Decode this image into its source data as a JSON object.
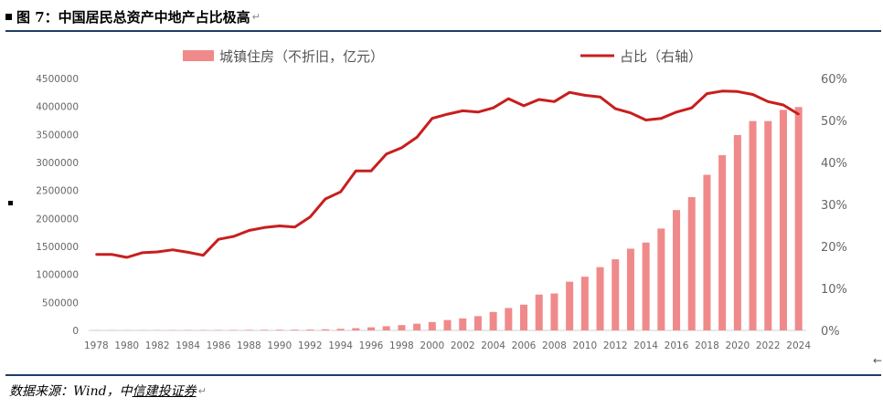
{
  "header": {
    "title": "图 7：中国居民总资产中地产占比极高",
    "return_mark": "↵"
  },
  "footer": {
    "source_prefix": "数据来源：Wind，中",
    "source_link": "信建投证券",
    "return_mark": "↵"
  },
  "side_arrow": "←",
  "colors": {
    "bar": "#f08a8a",
    "line": "#c81e1e",
    "rule": "#1f3f66"
  },
  "chart_data": {
    "type": "bar",
    "title": "",
    "xlabel": "",
    "ylabel": "",
    "categories": [
      1978,
      1979,
      1980,
      1981,
      1982,
      1983,
      1984,
      1985,
      1986,
      1987,
      1988,
      1989,
      1990,
      1991,
      1992,
      1993,
      1994,
      1995,
      1996,
      1997,
      1998,
      1999,
      2000,
      2001,
      2002,
      2003,
      2004,
      2005,
      2006,
      2007,
      2008,
      2009,
      2010,
      2011,
      2012,
      2013,
      2014,
      2015,
      2016,
      2017,
      2018,
      2019,
      2020,
      2021,
      2022,
      2023,
      2024
    ],
    "x_tick_labels": [
      "1978",
      "1980",
      "1982",
      "1984",
      "1986",
      "1988",
      "1990",
      "1992",
      "1994",
      "1996",
      "1998",
      "2000",
      "2002",
      "2004",
      "2006",
      "2008",
      "2010",
      "2012",
      "2014",
      "2016",
      "2018",
      "2020",
      "2022",
      "2024"
    ],
    "y_left": {
      "min": 0,
      "max": 4500000,
      "ticks": [
        "0",
        "500000",
        "1000000",
        "1500000",
        "2000000",
        "2500000",
        "3000000",
        "3500000",
        "4000000",
        "4500000"
      ]
    },
    "y_right": {
      "min": 0,
      "max": 0.6,
      "ticks": [
        "0%",
        "10%",
        "20%",
        "30%",
        "40%",
        "50%",
        "60%"
      ]
    },
    "grid": false,
    "legend_position": "top",
    "series": [
      {
        "name": "城镇住房（不折旧，亿元）",
        "type": "bar",
        "axis": "left",
        "values": [
          2000,
          2500,
          3000,
          3500,
          4000,
          5000,
          6000,
          7000,
          8000,
          9000,
          10000,
          11000,
          12000,
          13000,
          15000,
          20000,
          28000,
          40000,
          55000,
          75000,
          95000,
          120000,
          150000,
          185000,
          215000,
          255000,
          330000,
          400000,
          460000,
          640000,
          660000,
          870000,
          960000,
          1130000,
          1270000,
          1460000,
          1570000,
          1820000,
          2150000,
          2380000,
          2780000,
          3130000,
          3490000,
          3740000,
          3740000,
          3940000,
          3990000
        ]
      },
      {
        "name": "占比（右轴）",
        "type": "line",
        "axis": "right",
        "values": [
          0.181,
          0.181,
          0.174,
          0.185,
          0.187,
          0.192,
          0.186,
          0.179,
          0.217,
          0.224,
          0.238,
          0.245,
          0.249,
          0.246,
          0.27,
          0.313,
          0.33,
          0.38,
          0.38,
          0.42,
          0.435,
          0.46,
          0.505,
          0.515,
          0.523,
          0.52,
          0.53,
          0.552,
          0.535,
          0.55,
          0.545,
          0.567,
          0.56,
          0.556,
          0.528,
          0.518,
          0.501,
          0.505,
          0.52,
          0.53,
          0.564,
          0.57,
          0.569,
          0.562,
          0.545,
          0.537,
          0.515
        ]
      }
    ]
  }
}
